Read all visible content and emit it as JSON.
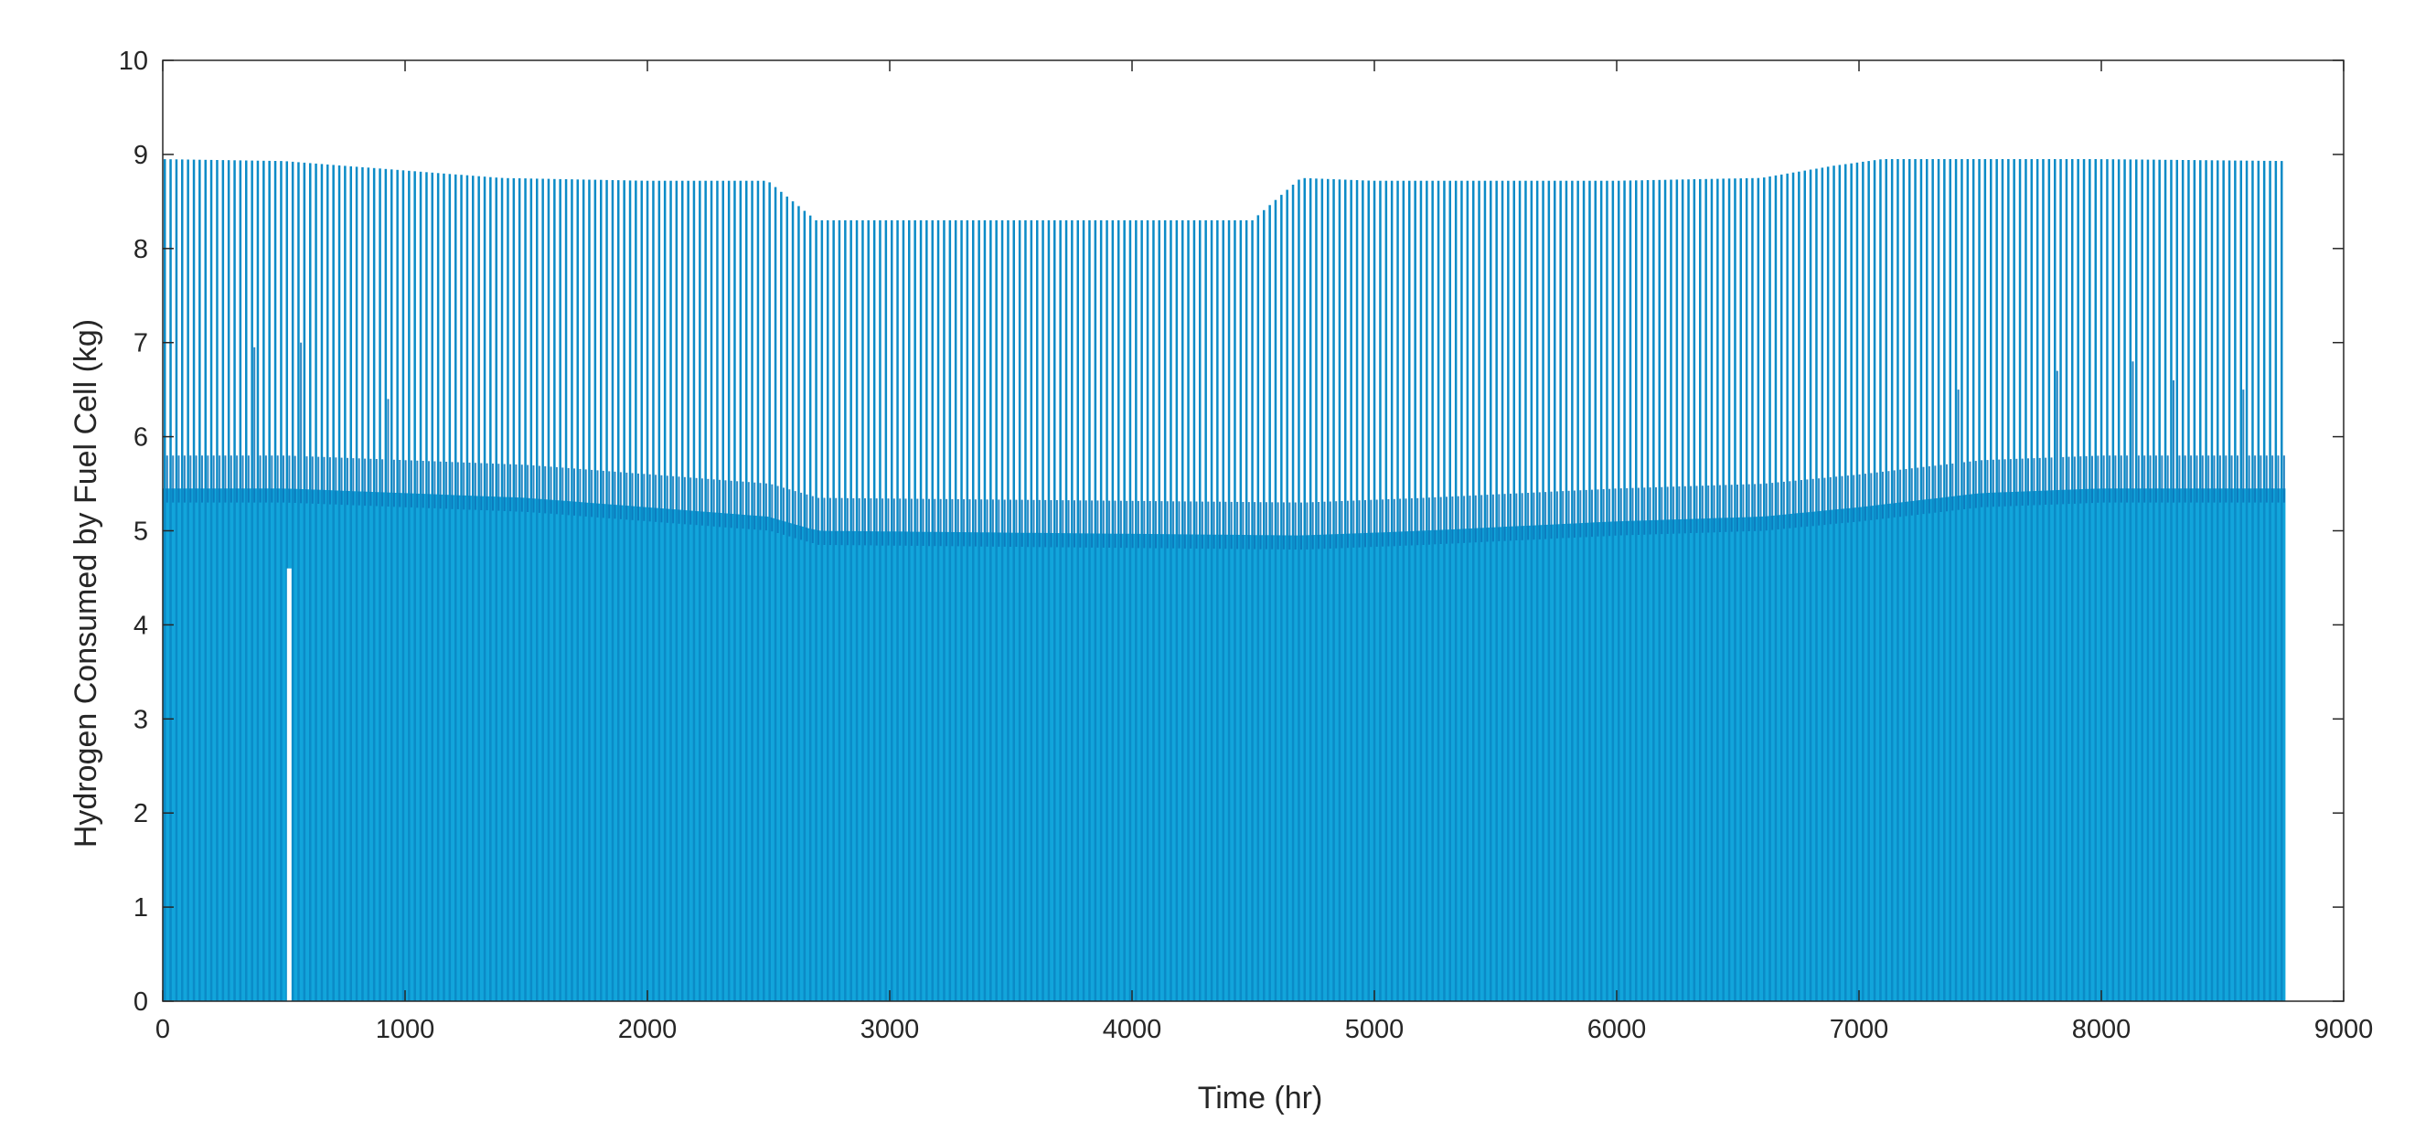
{
  "chart_data": {
    "type": "area",
    "title": "",
    "xlabel": "Time (hr)",
    "ylabel": "Hydrogen Consumed by Fuel Cell (kg)",
    "xlim": [
      0,
      9000
    ],
    "ylim": [
      0,
      10
    ],
    "x_ticks": [
      0,
      1000,
      2000,
      3000,
      4000,
      5000,
      6000,
      7000,
      8000,
      9000
    ],
    "y_ticks": [
      0,
      1,
      2,
      3,
      4,
      5,
      6,
      7,
      8,
      9,
      10
    ],
    "grid": false,
    "box": true,
    "line_color": "#0B8BC7",
    "fill_color": "#12A5DB",
    "dark_band_color": "#0A74B8",
    "series": [
      {
        "daily_cycle_hours": 24,
        "x_range": [
          0,
          8760
        ],
        "peak_envelope": {
          "x": [
            0,
            500,
            900,
            1400,
            2000,
            2500,
            2700,
            3000,
            3500,
            4000,
            4500,
            4700,
            5000,
            6000,
            6600,
            6900,
            7100,
            8000,
            8760
          ],
          "y": [
            8.95,
            8.93,
            8.85,
            8.75,
            8.72,
            8.72,
            8.3,
            8.3,
            8.3,
            8.3,
            8.3,
            8.75,
            8.72,
            8.72,
            8.75,
            8.88,
            8.95,
            8.95,
            8.93
          ]
        },
        "secondary_level": {
          "x": [
            0,
            500,
            1000,
            1500,
            2000,
            2500,
            2700,
            4700,
            5200,
            6000,
            6600,
            7000,
            7500,
            8000,
            8760
          ],
          "y": [
            5.8,
            5.8,
            5.75,
            5.7,
            5.6,
            5.5,
            5.35,
            5.3,
            5.35,
            5.45,
            5.5,
            5.6,
            5.75,
            5.8,
            5.8
          ]
        },
        "spikes": [
          {
            "x": 370,
            "y": 6.95
          },
          {
            "x": 540,
            "y": 7.0
          },
          {
            "x": 920,
            "y": 6.4
          },
          {
            "x": 7400,
            "y": 6.5
          },
          {
            "x": 7790,
            "y": 6.7
          },
          {
            "x": 8110,
            "y": 6.8
          },
          {
            "x": 8290,
            "y": 6.6
          },
          {
            "x": 8560,
            "y": 6.5
          }
        ],
        "gaps": [
          {
            "x": 520,
            "y_top": 4.6
          }
        ]
      }
    ]
  }
}
